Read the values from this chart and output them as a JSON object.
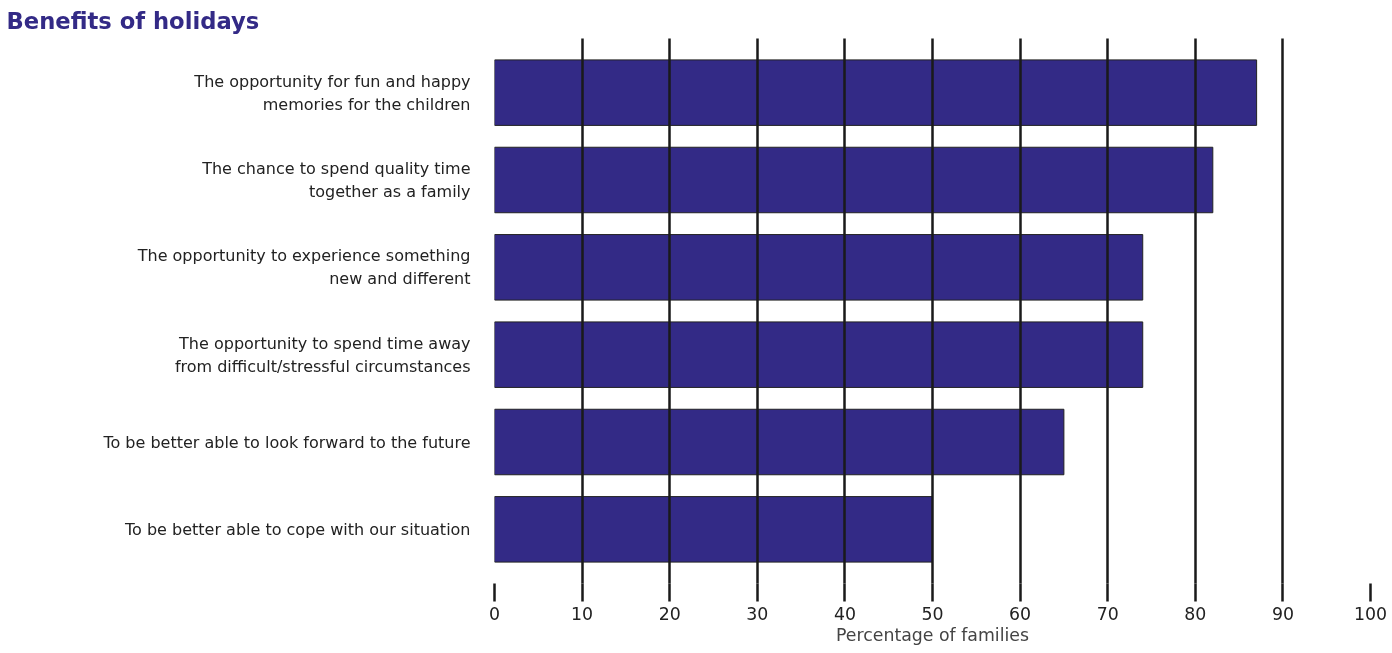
{
  "chart_data": {
    "type": "bar",
    "orientation": "horizontal",
    "title": "Benefits of holidays",
    "xlabel": "Percentage of families",
    "categories": [
      "The opportunity for fun and happy\nmemories for the children",
      "The chance to spend quality time\ntogether as a family",
      "The opportunity to experience something\nnew and different",
      "The opportunity to spend time away\nfrom difficult/stressful circumstances",
      "To be better able to look forward to the future",
      "To be better able to cope with our situation"
    ],
    "values": [
      87,
      82,
      74,
      74,
      65,
      50
    ],
    "color": "#332a86",
    "xlim": [
      0,
      100
    ],
    "xticks": [
      0,
      10,
      20,
      30,
      40,
      50,
      60,
      70,
      80,
      90,
      100
    ],
    "grid": "x"
  }
}
